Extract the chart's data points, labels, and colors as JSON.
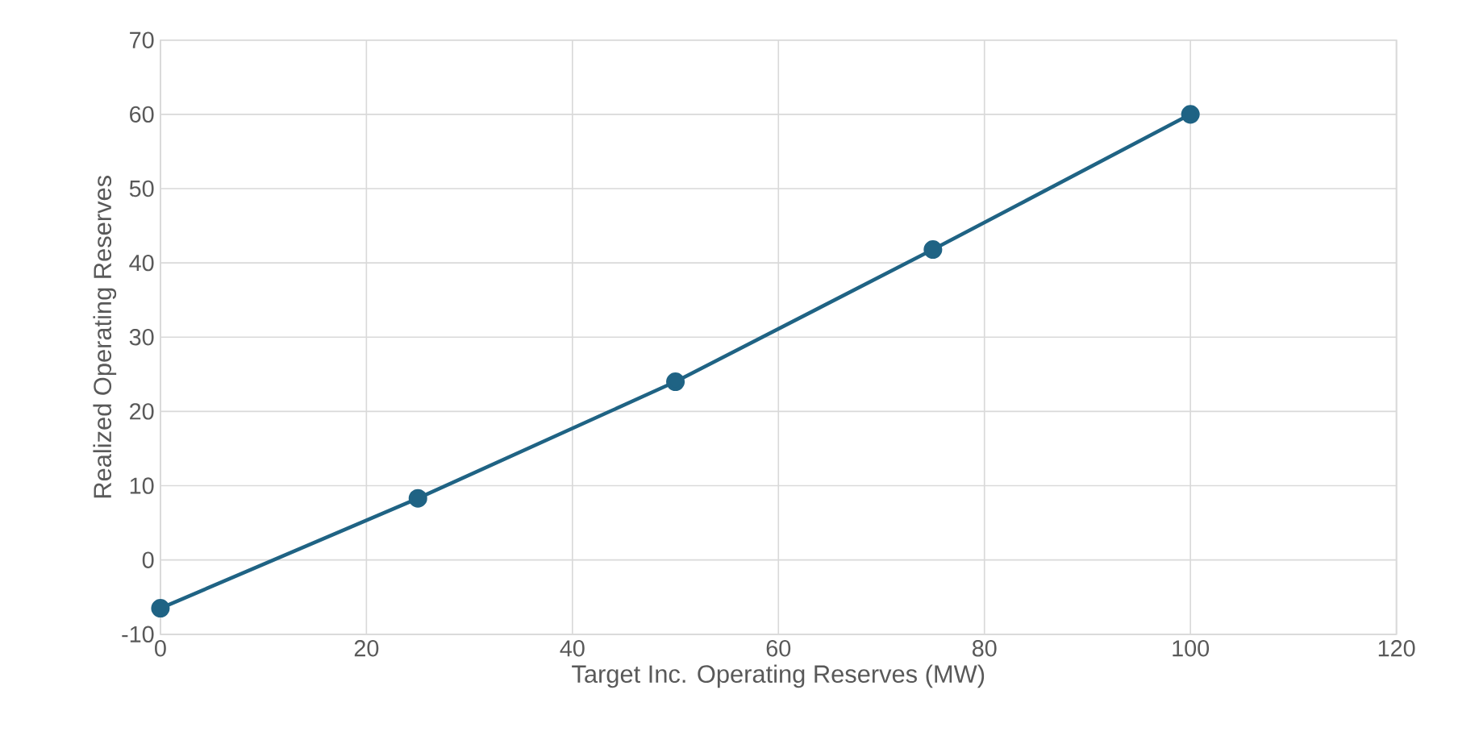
{
  "chart_data": {
    "type": "line",
    "xlabel": "Target Inc. Operating Reserves (MW)",
    "ylabel": "Realized Operating Reserves",
    "x": [
      0,
      25,
      50,
      75,
      100
    ],
    "series": [
      {
        "color": "#1f6384",
        "values": [
          -6.5,
          8.3,
          24,
          41.8,
          60
        ]
      }
    ],
    "xlim": [
      0,
      120
    ],
    "xticks": [
      0,
      20,
      40,
      60,
      80,
      100,
      120
    ],
    "ylim": [
      -10,
      70
    ],
    "yticks": [
      -10,
      0,
      10,
      20,
      30,
      40,
      50,
      60,
      70
    ],
    "grid": true,
    "marker": "circle",
    "line_style": "solid"
  }
}
